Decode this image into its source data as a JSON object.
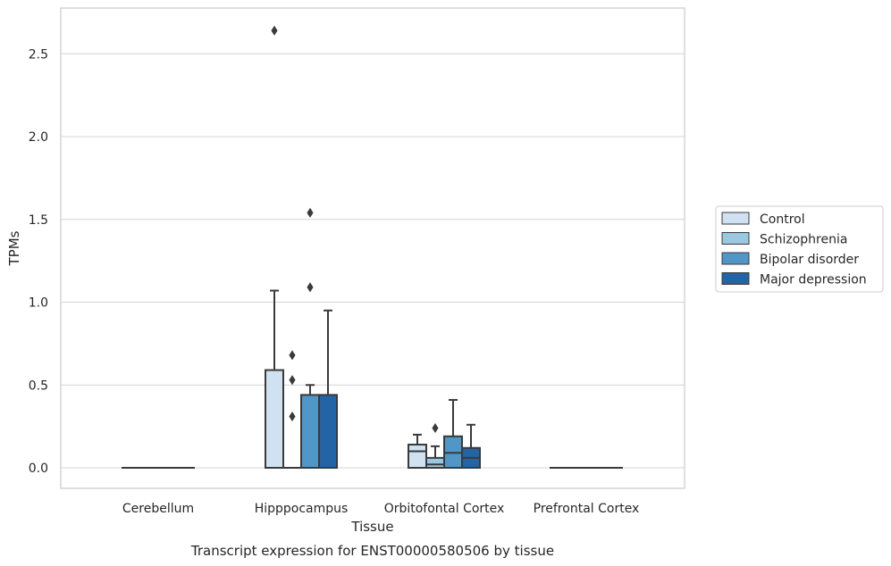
{
  "chart_data": {
    "type": "box",
    "xlabel": "Tissue",
    "ylabel": "TPMs",
    "caption": "Transcript expression for ENST00000580506 by tissue",
    "ylim": [
      -0.13,
      2.78
    ],
    "yticks": [
      0.0,
      0.5,
      1.0,
      1.5,
      2.0,
      2.5
    ],
    "ytick_labels": [
      "0.0",
      "0.5",
      "1.0",
      "1.5",
      "2.0",
      "2.5"
    ],
    "grid": true,
    "legend_position": "right",
    "categories": [
      "Cerebellum",
      "Hipppocampus",
      "Orbitofontal Cortex",
      "Prefrontal Cortex"
    ],
    "series": [
      {
        "name": "Control",
        "color": "#d0e2f2",
        "boxes": [
          {
            "q1": 0,
            "median": 0,
            "q3": 0,
            "whisker_low": 0,
            "whisker_high": 0,
            "outliers": []
          },
          {
            "q1": 0,
            "median": 0,
            "q3": 0.59,
            "whisker_low": 0,
            "whisker_high": 1.07,
            "outliers": [
              2.64
            ]
          },
          {
            "q1": 0,
            "median": 0.1,
            "q3": 0.14,
            "whisker_low": 0,
            "whisker_high": 0.2,
            "outliers": []
          },
          {
            "q1": 0,
            "median": 0,
            "q3": 0,
            "whisker_low": 0,
            "whisker_high": 0,
            "outliers": []
          }
        ]
      },
      {
        "name": "Schizophrenia",
        "color": "#9ac8e0",
        "boxes": [
          {
            "q1": 0,
            "median": 0,
            "q3": 0,
            "whisker_low": 0,
            "whisker_high": 0,
            "outliers": []
          },
          {
            "q1": 0,
            "median": 0,
            "q3": 0,
            "whisker_low": 0,
            "whisker_high": 0,
            "outliers": [
              0.68,
              0.53,
              0.31
            ]
          },
          {
            "q1": 0,
            "median": 0.02,
            "q3": 0.06,
            "whisker_low": 0,
            "whisker_high": 0.13,
            "outliers": [
              0.24
            ]
          },
          {
            "q1": 0,
            "median": 0,
            "q3": 0,
            "whisker_low": 0,
            "whisker_high": 0,
            "outliers": []
          }
        ]
      },
      {
        "name": "Bipolar disorder",
        "color": "#5096c6",
        "boxes": [
          {
            "q1": 0,
            "median": 0,
            "q3": 0,
            "whisker_low": 0,
            "whisker_high": 0,
            "outliers": []
          },
          {
            "q1": 0,
            "median": 0,
            "q3": 0.44,
            "whisker_low": 0,
            "whisker_high": 0.5,
            "outliers": [
              1.54,
              1.09
            ]
          },
          {
            "q1": 0,
            "median": 0.09,
            "q3": 0.19,
            "whisker_low": 0,
            "whisker_high": 0.41,
            "outliers": []
          },
          {
            "q1": 0,
            "median": 0,
            "q3": 0,
            "whisker_low": 0,
            "whisker_high": 0,
            "outliers": []
          }
        ]
      },
      {
        "name": "Major depression",
        "color": "#2264a6",
        "boxes": [
          {
            "q1": 0,
            "median": 0,
            "q3": 0,
            "whisker_low": 0,
            "whisker_high": 0,
            "outliers": []
          },
          {
            "q1": 0,
            "median": 0,
            "q3": 0.44,
            "whisker_low": 0,
            "whisker_high": 0.95,
            "outliers": []
          },
          {
            "q1": 0,
            "median": 0.06,
            "q3": 0.12,
            "whisker_low": 0,
            "whisker_high": 0.26,
            "outliers": []
          },
          {
            "q1": 0,
            "median": 0,
            "q3": 0,
            "whisker_low": 0,
            "whisker_high": 0,
            "outliers": []
          }
        ]
      }
    ]
  }
}
